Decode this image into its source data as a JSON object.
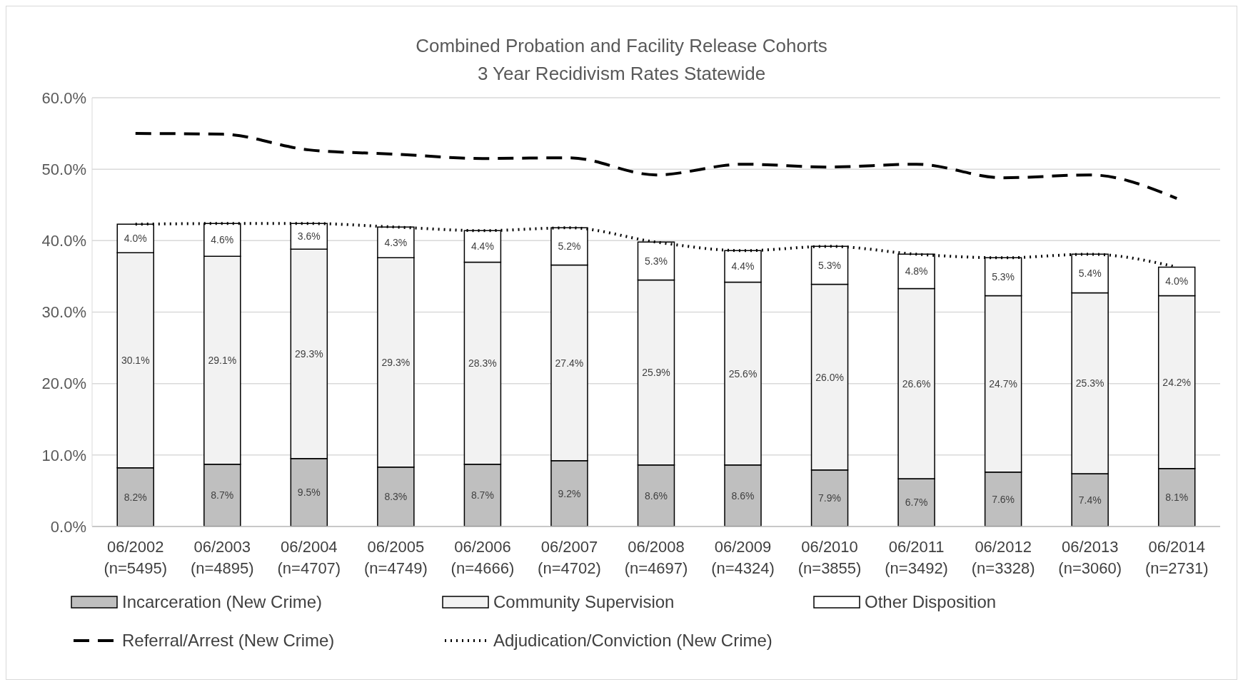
{
  "chart_data": {
    "type": "bar",
    "stacked": true,
    "title": "Combined Probation and Facility Release Cohorts\n3 Year Recidivism Rates Statewide",
    "categories": [
      "06/2002\n(n=5495)",
      "06/2003\n(n=4895)",
      "06/2004\n(n=4707)",
      "06/2005\n(n=4749)",
      "06/2006\n(n=4666)",
      "06/2007\n(n=4702)",
      "06/2008\n(n=4697)",
      "06/2009\n(n=4324)",
      "06/2010\n(n=3855)",
      "06/2011\n(n=3492)",
      "06/2012\n(n=3328)",
      "06/2013\n(n=3060)",
      "06/2014\n(n=2731)"
    ],
    "series": [
      {
        "name": "Incarceration (New Crime)",
        "color": "#bfbfbf",
        "values": [
          8.2,
          8.7,
          9.5,
          8.3,
          8.7,
          9.2,
          8.6,
          8.6,
          7.9,
          6.7,
          7.6,
          7.4,
          8.1
        ],
        "value_labels": [
          "8.2%",
          "8.7%",
          "9.5%",
          "8.3%",
          "8.7%",
          "9.2%",
          "8.6%",
          "8.6%",
          "7.9%",
          "6.7%",
          "7.6%",
          "7.4%",
          "8.1%"
        ]
      },
      {
        "name": "Community Supervision",
        "color": "#f2f2f2",
        "values": [
          30.1,
          29.1,
          29.3,
          29.3,
          28.3,
          27.4,
          25.9,
          25.6,
          26.0,
          26.6,
          24.7,
          25.3,
          24.2
        ],
        "value_labels": [
          "30.1%",
          "29.1%",
          "29.3%",
          "29.3%",
          "28.3%",
          "27.4%",
          "25.9%",
          "25.6%",
          "26.0%",
          "26.6%",
          "24.7%",
          "25.3%",
          "24.2%"
        ]
      },
      {
        "name": "Other Disposition",
        "color": "#ffffff",
        "values": [
          4.0,
          4.6,
          3.6,
          4.3,
          4.4,
          5.2,
          5.3,
          4.4,
          5.3,
          4.8,
          5.3,
          5.4,
          4.0
        ],
        "value_labels": [
          "4.0%",
          "4.6%",
          "3.6%",
          "4.3%",
          "4.4%",
          "5.2%",
          "5.3%",
          "4.4%",
          "5.3%",
          "4.8%",
          "5.3%",
          "5.4%",
          "4.0%"
        ]
      },
      {
        "name": "Referral/Arrest (New Crime)",
        "type": "line",
        "color": "#000000",
        "line_style": "dashed",
        "values": [
          55.0,
          54.9,
          52.7,
          52.1,
          51.5,
          51.6,
          49.2,
          50.7,
          50.3,
          50.7,
          48.8,
          49.2,
          45.9
        ]
      },
      {
        "name": "Adjudication/Conviction (New Crime)",
        "type": "line",
        "color": "#000000",
        "line_style": "dotted",
        "values": [
          42.3,
          42.4,
          42.4,
          41.9,
          41.4,
          41.8,
          39.8,
          38.6,
          39.2,
          38.1,
          37.6,
          38.1,
          36.3
        ]
      }
    ],
    "ylim": [
      0,
      60
    ],
    "yticks": [
      {
        "value": 0,
        "label": "0.0%"
      },
      {
        "value": 10,
        "label": "10.0%"
      },
      {
        "value": 20,
        "label": "20.0%"
      },
      {
        "value": 30,
        "label": "30.0%"
      },
      {
        "value": 40,
        "label": "40.0%"
      },
      {
        "value": 50,
        "label": "50.0%"
      },
      {
        "value": 60,
        "label": "60.0%"
      }
    ],
    "grid": "y",
    "legend": "bottom",
    "marker": "none"
  }
}
